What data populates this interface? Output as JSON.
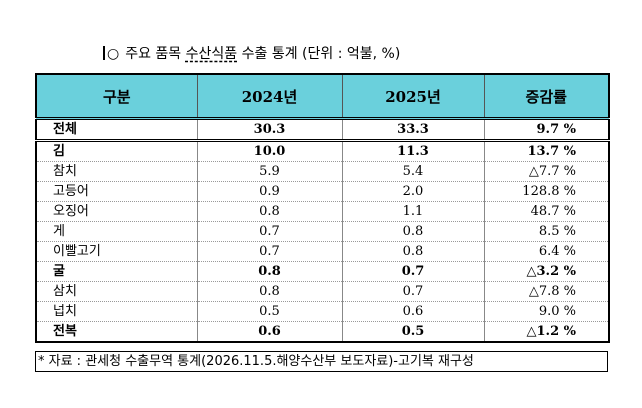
{
  "heading": {
    "bullet": "○",
    "pre": "주요 품목 ",
    "emph": "수산식품",
    "post": " 수출 통계 (단위 : 억불, %)"
  },
  "table": {
    "headers": [
      "구분",
      "2024년",
      "2025년",
      "증감률"
    ],
    "rows": [
      {
        "name": "전체",
        "y2024": "30.3",
        "y2025": "33.3",
        "rate": "9.7 %",
        "bold": true
      },
      {
        "name": "김",
        "y2024": "10.0",
        "y2025": "11.3",
        "rate": "13.7 %",
        "bold": true
      },
      {
        "name": "참치",
        "y2024": "5.9",
        "y2025": "5.4",
        "rate": "△7.7 %",
        "bold": false
      },
      {
        "name": "고등어",
        "y2024": "0.9",
        "y2025": "2.0",
        "rate": "128.8 %",
        "bold": false
      },
      {
        "name": "오징어",
        "y2024": "0.8",
        "y2025": "1.1",
        "rate": "48.7 %",
        "bold": false
      },
      {
        "name": "게",
        "y2024": "0.7",
        "y2025": "0.8",
        "rate": "8.5 %",
        "bold": false
      },
      {
        "name": "이빨고기",
        "y2024": "0.7",
        "y2025": "0.8",
        "rate": "6.4 %",
        "bold": false
      },
      {
        "name": "굴",
        "y2024": "0.8",
        "y2025": "0.7",
        "rate": "△3.2 %",
        "bold": true
      },
      {
        "name": "삼치",
        "y2024": "0.8",
        "y2025": "0.7",
        "rate": "△7.8 %",
        "bold": false
      },
      {
        "name": "넙치",
        "y2024": "0.5",
        "y2025": "0.6",
        "rate": "9.0 %",
        "bold": false
      },
      {
        "name": "전복",
        "y2024": "0.6",
        "y2025": "0.5",
        "rate": "△1.2 %",
        "bold": true
      }
    ]
  },
  "source_note": "* 자료 : 관세청 수출무역 통계(2026.11.5.해양수산부 보도자료)-고기복 재구성",
  "colors": {
    "header_bg": "#6ad0dc"
  }
}
